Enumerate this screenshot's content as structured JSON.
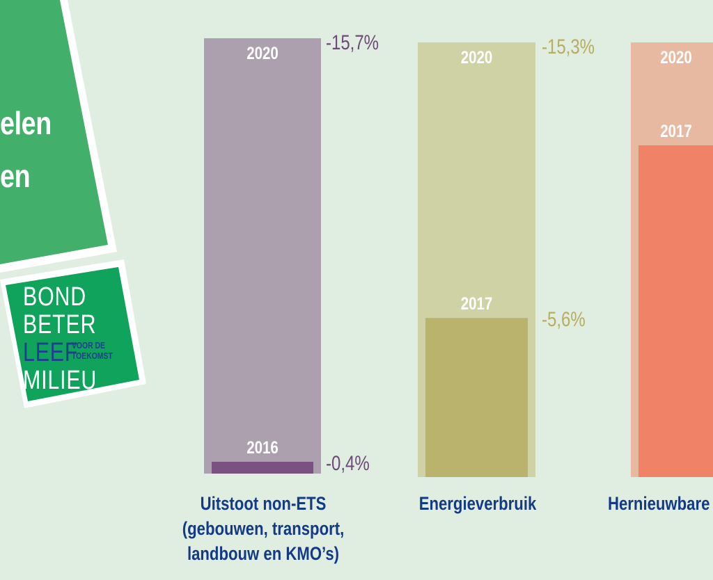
{
  "banner": {
    "title_lines": [
      "elen",
      "en"
    ],
    "logo": {
      "word1": "BOND",
      "word2": "BETER",
      "word3": "LEEF",
      "word4": "MILIEU",
      "small_line1": "VOOR DE",
      "small_line2": "TOEKOMST"
    }
  },
  "colors": {
    "banner_green": "#42b06a",
    "logo_green": "#0fa35c",
    "background": "#e0eee1",
    "category_text": "#143a86"
  },
  "chart_data": {
    "type": "bar",
    "categories": [
      {
        "label_lines": [
          "Uitstoot non-ETS",
          "(gebouwen, transport,",
          "landbouw en KMO’s)"
        ],
        "target_year": "2020",
        "target_value": -15.7,
        "target_label": "-15,7%",
        "actual_year": "2016",
        "actual_value": -0.4,
        "actual_label": "-0,4%",
        "target_color": "#ada0ae",
        "actual_color": "#7a5282",
        "label_color": "#6e4a79"
      },
      {
        "label_lines": [
          "Energieverbruik"
        ],
        "target_year": "2020",
        "target_value": -15.3,
        "target_label": "-15,3%",
        "actual_year": "2017",
        "actual_value": -5.6,
        "actual_label": "-5,6%",
        "target_color": "#ced2a5",
        "actual_color": "#bab36e",
        "label_color": "#b8ad5e"
      },
      {
        "label_lines": [
          "Hernieuwbare"
        ],
        "target_year": "2020",
        "target_value": null,
        "target_label": "",
        "actual_year": "2017",
        "actual_value": null,
        "actual_label": "",
        "target_color": "#e8b9a1",
        "actual_color": "#f08367",
        "label_color": "#e07a5f"
      }
    ]
  }
}
